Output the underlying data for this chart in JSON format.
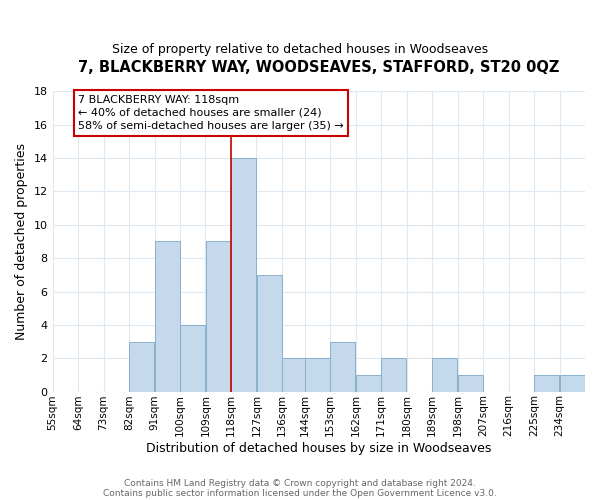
{
  "title": "7, BLACKBERRY WAY, WOODSEAVES, STAFFORD, ST20 0QZ",
  "subtitle": "Size of property relative to detached houses in Woodseaves",
  "xlabel": "Distribution of detached houses by size in Woodseaves",
  "ylabel": "Number of detached properties",
  "bin_edges": [
    55,
    64,
    73,
    82,
    91,
    100,
    109,
    118,
    127,
    136,
    144,
    153,
    162,
    171,
    180,
    189,
    198,
    207,
    216,
    225,
    234,
    243
  ],
  "bin_labels": [
    "55sqm",
    "64sqm",
    "73sqm",
    "82sqm",
    "91sqm",
    "100sqm",
    "109sqm",
    "118sqm",
    "127sqm",
    "136sqm",
    "144sqm",
    "153sqm",
    "162sqm",
    "171sqm",
    "180sqm",
    "189sqm",
    "198sqm",
    "207sqm",
    "216sqm",
    "225sqm",
    "234sqm"
  ],
  "counts": [
    0,
    0,
    0,
    3,
    9,
    4,
    9,
    14,
    7,
    2,
    2,
    3,
    1,
    2,
    0,
    2,
    1,
    0,
    0,
    1,
    1
  ],
  "bar_color": "#c5d9ed",
  "bar_edge_color": "#8ab0cc",
  "highlight_bin": 7,
  "highlight_line_color": "#cc0000",
  "ylim": [
    0,
    18
  ],
  "yticks": [
    0,
    2,
    4,
    6,
    8,
    10,
    12,
    14,
    16,
    18
  ],
  "annotation_box_text": "7 BLACKBERRY WAY: 118sqm\n← 40% of detached houses are smaller (24)\n58% of semi-detached houses are larger (35) →",
  "annotation_box_facecolor": "#ffffff",
  "annotation_box_edgecolor": "#cc0000",
  "footer_line1": "Contains HM Land Registry data © Crown copyright and database right 2024.",
  "footer_line2": "Contains public sector information licensed under the Open Government Licence v3.0.",
  "grid_color": "#dde8f0",
  "background_color": "#ffffff",
  "title_fontsize": 10.5,
  "subtitle_fontsize": 9
}
